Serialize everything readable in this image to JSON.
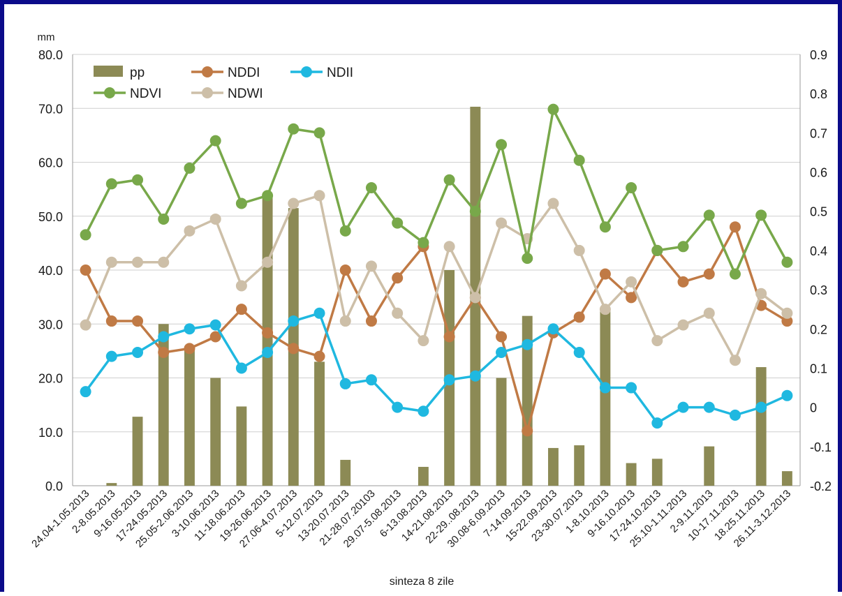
{
  "chart_data": {
    "type": "bar",
    "categories": [
      "24.04-1.05.2013",
      "2-8.05.2013",
      "9-16.05.2013",
      "17-24.05.2013",
      "25.05-2.06.2013",
      "3-10.06.2013",
      "11-18.06.2013",
      "19-26.06.2013",
      "27.06-4.07.2013",
      "5-12.07.2013",
      "13-20.07.2013",
      "21-28.07.20103",
      "29.07-5.08.2013",
      "6-13.08.2013",
      "14-21.08.2013",
      "22-29..08.2013",
      "30.08-6.09.2013",
      "7-14.09.2013",
      "15-22.09.2013",
      "23-30.07.2013",
      "1-8.10.2013",
      "9-16.10.2013",
      "17-24.10.2013",
      "25.10-1.11.2013",
      "2-9.11.2013",
      "10-17.11.2013",
      "18.25.11.2013",
      "26.11-3.12.2013"
    ],
    "xlabel": "sinteza 8 zile",
    "ylabel_left": "mm",
    "ylim_left": [
      0,
      80
    ],
    "yticks_left": [
      "0.0",
      "10.0",
      "20.0",
      "30.0",
      "40.0",
      "50.0",
      "60.0",
      "70.0",
      "80.0"
    ],
    "ylim_right": [
      -0.2,
      0.9
    ],
    "yticks_right": [
      "-0.2",
      "-0.1",
      "0",
      "0.1",
      "0.2",
      "0.3",
      "0.4",
      "0.5",
      "0.6",
      "0.7",
      "0.8",
      "0.9"
    ],
    "grid": true,
    "legend_position": "top-left",
    "bar_series": {
      "name": "pp",
      "axis": "left",
      "color": "#8c8a55",
      "values": [
        0,
        0.5,
        12.8,
        30.0,
        25.5,
        20.0,
        14.7,
        54.0,
        51.5,
        23.0,
        4.8,
        0,
        0,
        3.5,
        40.0,
        70.3,
        20.0,
        31.5,
        7.0,
        7.5,
        33.0,
        4.2,
        5.0,
        0,
        7.3,
        0,
        22.0,
        2.7
      ]
    },
    "line_series": [
      {
        "name": "NDDI",
        "axis": "right",
        "color": "#c07a45",
        "values": [
          0.35,
          0.22,
          0.22,
          0.14,
          0.15,
          0.18,
          0.25,
          0.19,
          0.15,
          0.13,
          0.35,
          0.22,
          0.33,
          0.41,
          0.18,
          0.28,
          0.18,
          -0.06,
          0.19,
          0.23,
          0.34,
          0.28,
          0.4,
          0.32,
          0.34,
          0.46,
          0.26,
          0.22
        ]
      },
      {
        "name": "NDII",
        "axis": "right",
        "color": "#1fb8e0",
        "values": [
          0.04,
          0.13,
          0.14,
          0.18,
          0.2,
          0.21,
          0.1,
          0.14,
          0.22,
          0.24,
          0.06,
          0.07,
          0.0,
          -0.01,
          0.07,
          0.08,
          0.14,
          0.16,
          0.2,
          0.14,
          0.05,
          0.05,
          -0.04,
          0.0,
          0.0,
          -0.02,
          0.0,
          0.03
        ]
      },
      {
        "name": "NDVI",
        "axis": "right",
        "color": "#78a84a",
        "values": [
          0.44,
          0.57,
          0.58,
          0.48,
          0.61,
          0.68,
          0.52,
          0.54,
          0.71,
          0.7,
          0.45,
          0.56,
          0.47,
          0.42,
          0.58,
          0.5,
          0.67,
          0.38,
          0.76,
          0.63,
          0.46,
          0.56,
          0.4,
          0.41,
          0.49,
          0.34,
          0.49,
          0.37
        ]
      },
      {
        "name": "NDWI",
        "axis": "right",
        "color": "#cdbfa8",
        "values": [
          0.21,
          0.37,
          0.37,
          0.37,
          0.45,
          0.48,
          0.31,
          0.37,
          0.52,
          0.54,
          0.22,
          0.36,
          0.24,
          0.17,
          0.41,
          0.28,
          0.47,
          0.43,
          0.52,
          0.4,
          0.25,
          0.32,
          0.17,
          0.21,
          0.24,
          0.12,
          0.29,
          0.24
        ]
      }
    ],
    "legend": [
      {
        "name": "pp",
        "kind": "bar"
      },
      {
        "name": "NDDI",
        "kind": "line"
      },
      {
        "name": "NDII",
        "kind": "line"
      },
      {
        "name": "NDVI",
        "kind": "line"
      },
      {
        "name": "NDWI",
        "kind": "line"
      }
    ]
  },
  "colors": {
    "frame": "#0b0b8a",
    "grid": "#cfcfcf",
    "text": "#1a1a1a"
  }
}
